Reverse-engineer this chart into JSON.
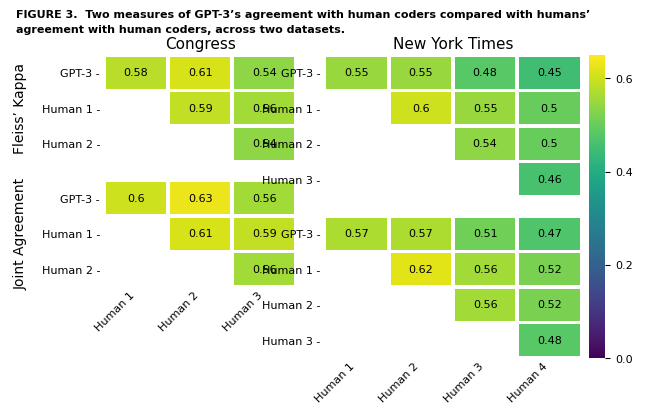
{
  "title_line1": "FIGURE 3.  Two measures of GPT-3’s agreement with human coders compared with humans’",
  "title_line2": "agreement with human coders, across two datasets.",
  "colormap": "viridis",
  "vmin": 0.0,
  "vmax": 0.65,
  "congress_fleiss": {
    "rows": [
      "GPT-3 -",
      "Human 1 -",
      "Human 2 -"
    ],
    "cols": [
      "Human 1",
      "Human 2",
      "Human 3"
    ],
    "data": [
      [
        0.58,
        0.61,
        0.54
      ],
      [
        null,
        0.59,
        0.56
      ],
      [
        null,
        null,
        0.54
      ]
    ]
  },
  "congress_joint": {
    "rows": [
      "GPT-3 -",
      "Human 1 -",
      "Human 2 -"
    ],
    "cols": [
      "Human 1",
      "Human 2",
      "Human 3"
    ],
    "data": [
      [
        0.6,
        0.63,
        0.56
      ],
      [
        null,
        0.61,
        0.59
      ],
      [
        null,
        null,
        0.56
      ]
    ]
  },
  "nyt_fleiss": {
    "rows": [
      "GPT-3 -",
      "Human 1 -",
      "Human 2 -",
      "Human 3 -"
    ],
    "cols": [
      "Human 1",
      "Human 2",
      "Human 3",
      "Human 4"
    ],
    "data": [
      [
        0.55,
        0.55,
        0.48,
        0.45
      ],
      [
        null,
        0.6,
        0.55,
        0.5
      ],
      [
        null,
        null,
        0.54,
        0.5
      ],
      [
        null,
        null,
        null,
        0.46
      ]
    ]
  },
  "nyt_joint": {
    "rows": [
      "GPT-3 -",
      "Human 1 -",
      "Human 2 -",
      "Human 3 -"
    ],
    "cols": [
      "Human 1",
      "Human 2",
      "Human 3",
      "Human 4"
    ],
    "data": [
      [
        0.57,
        0.57,
        0.51,
        0.47
      ],
      [
        null,
        0.62,
        0.56,
        0.52
      ],
      [
        null,
        null,
        0.56,
        0.52
      ],
      [
        null,
        null,
        null,
        0.48
      ]
    ]
  },
  "congress_title": "Congress",
  "nyt_title": "New York Times",
  "fleiss_label": "Fleiss’ Kappa",
  "joint_label": "Joint Agreement",
  "colorbar_ticks": [
    0.0,
    0.2,
    0.4,
    0.6
  ],
  "cell_fontsize": 8,
  "label_fontsize": 8,
  "title_fontsize": 8,
  "section_title_fontsize": 11
}
